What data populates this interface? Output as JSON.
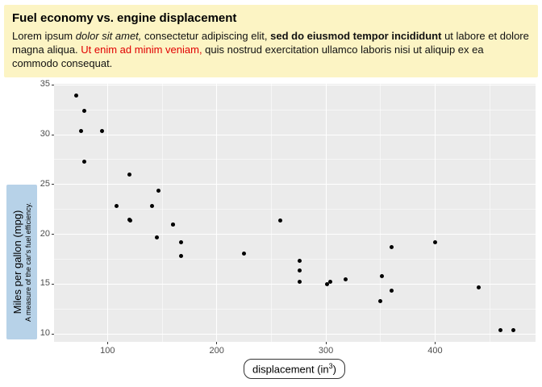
{
  "header": {
    "title": "Fuel economy vs. engine displacement",
    "bg": "#fcf4c4",
    "red_color": "#e10000",
    "segments": [
      {
        "text": "Lorem ipsum ",
        "style": "normal"
      },
      {
        "text": "dolor sit amet,",
        "style": "italic"
      },
      {
        "text": " consectetur adipiscing elit, ",
        "style": "normal"
      },
      {
        "text": "sed do eiusmod tempor incididunt",
        "style": "bold"
      },
      {
        "text": " ut labore et dolore magna aliqua. ",
        "style": "normal"
      },
      {
        "text": "Ut enim ad minim veniam,",
        "style": "red"
      },
      {
        "text": " quis nostrud exercitation ullamco laboris nisi ut aliquip ex ea commodo consequat.",
        "style": "normal"
      }
    ]
  },
  "y_axis_box": {
    "bg": "#b7d2e8",
    "label": "Miles per gallon (mpg)",
    "sublabel": "A measure of the car's fuel efficiency."
  },
  "x_axis_box": {
    "prefix": "displacement (in",
    "sup": "3",
    "suffix": ")"
  },
  "chart_data": {
    "type": "scatter",
    "title": "Fuel economy vs. engine displacement",
    "xlabel": "displacement (in³)",
    "ylabel": "Miles per gallon (mpg)",
    "xlim": [
      51,
      492
    ],
    "ylim": [
      9.2,
      35.1
    ],
    "x_ticks": [
      100,
      200,
      300,
      400
    ],
    "y_ticks": [
      10,
      15,
      20,
      25,
      30,
      35
    ],
    "x_minor": [
      150,
      250,
      350,
      450
    ],
    "y_minor": [
      12.5,
      17.5,
      22.5,
      27.5,
      32.5
    ],
    "grid": true,
    "legend": "none",
    "panel_bg": "#ebebeb",
    "grid_color": "#ffffff",
    "point_color": "#000000",
    "points": [
      [
        160,
        21.0
      ],
      [
        160,
        21.0
      ],
      [
        108,
        22.8
      ],
      [
        258,
        21.4
      ],
      [
        360,
        18.7
      ],
      [
        225,
        18.1
      ],
      [
        360,
        14.3
      ],
      [
        146.7,
        24.4
      ],
      [
        140.8,
        22.8
      ],
      [
        167.6,
        19.2
      ],
      [
        167.6,
        17.8
      ],
      [
        275.8,
        16.4
      ],
      [
        275.8,
        17.3
      ],
      [
        275.8,
        15.2
      ],
      [
        472,
        10.4
      ],
      [
        460,
        10.4
      ],
      [
        440,
        14.7
      ],
      [
        78.7,
        32.4
      ],
      [
        75.7,
        30.4
      ],
      [
        71.1,
        33.9
      ],
      [
        120.1,
        21.5
      ],
      [
        318,
        15.5
      ],
      [
        304,
        15.2
      ],
      [
        350,
        13.3
      ],
      [
        400,
        19.2
      ],
      [
        79,
        27.3
      ],
      [
        120.3,
        26.0
      ],
      [
        95.1,
        30.4
      ],
      [
        351,
        15.8
      ],
      [
        145,
        19.7
      ],
      [
        301,
        15.0
      ],
      [
        121,
        21.4
      ]
    ]
  }
}
